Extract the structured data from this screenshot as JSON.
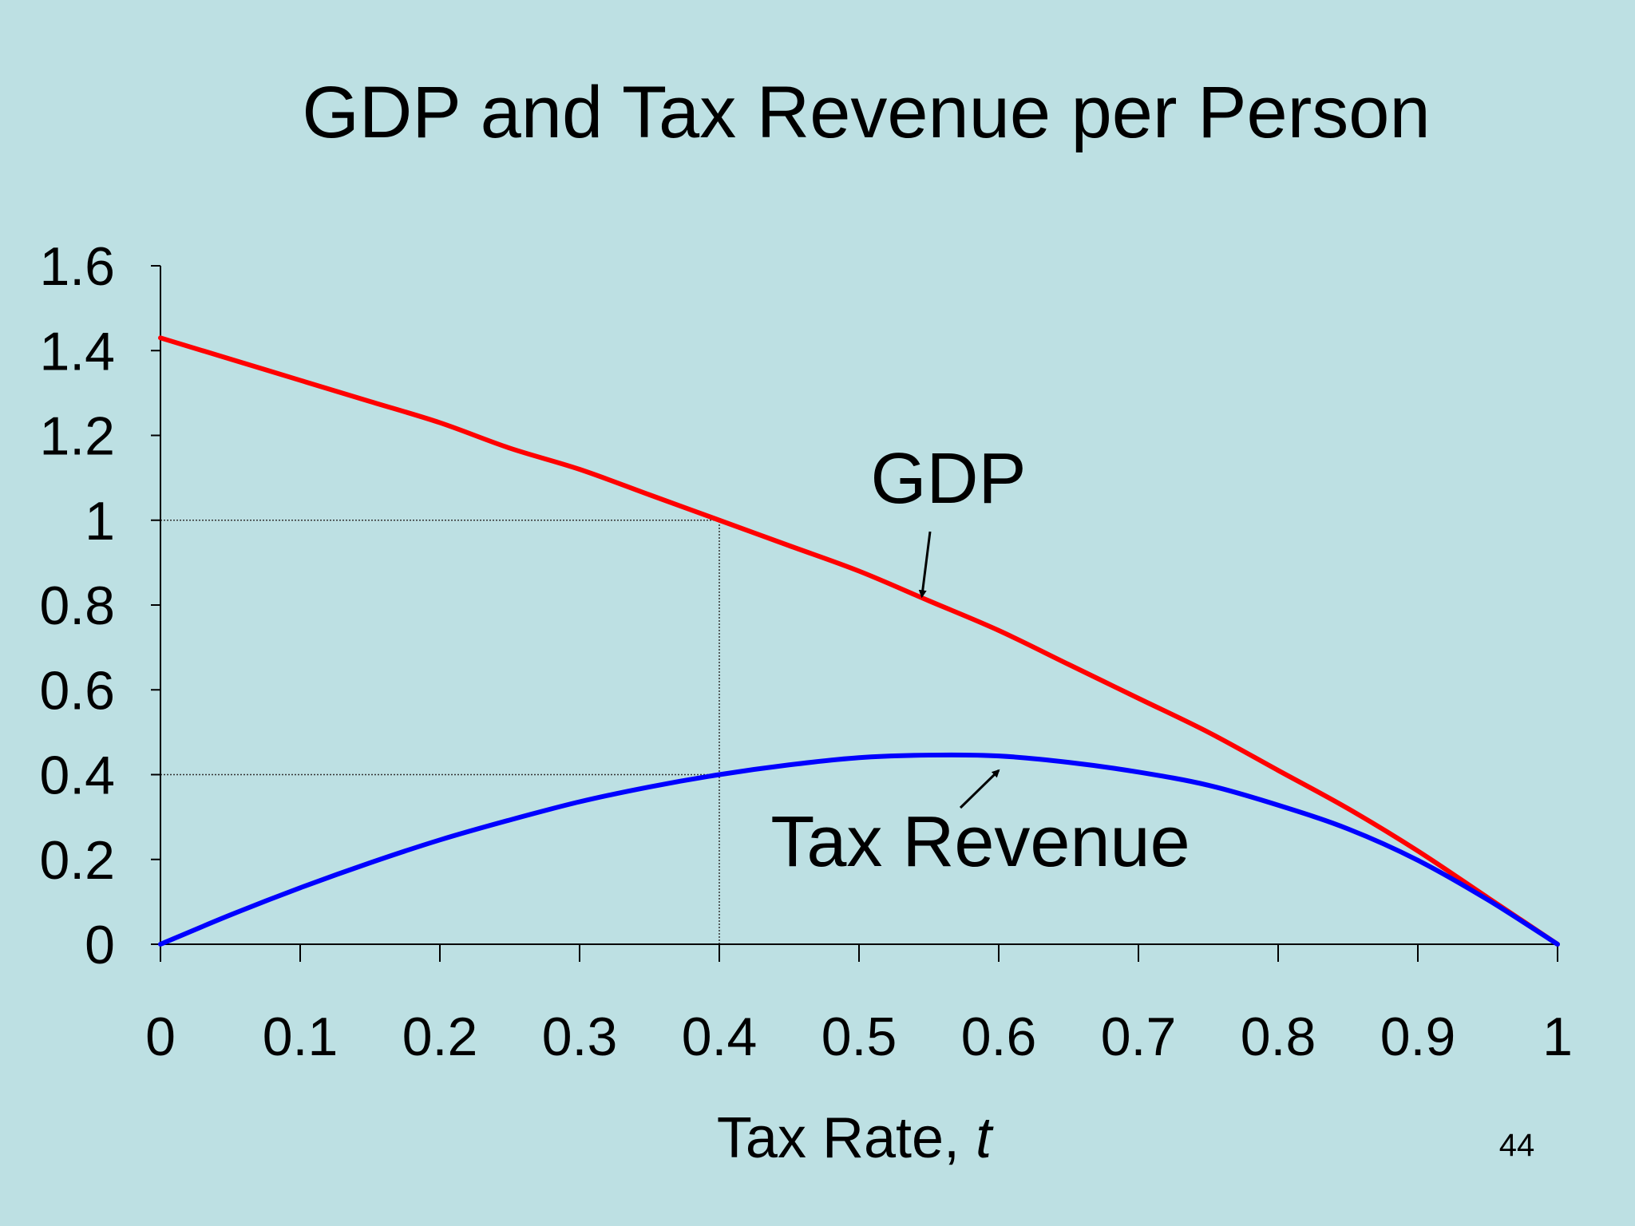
{
  "slide": {
    "page_number": "44",
    "background_color": "#bde0e3"
  },
  "chart_data": {
    "type": "line",
    "title": "GDP and Tax Revenue per Person",
    "xlabel": "Tax Rate, ",
    "xlabel_var": "t",
    "ylabel": "",
    "xlim": [
      0,
      1
    ],
    "ylim": [
      0,
      1.6
    ],
    "x_ticks": [
      0,
      0.1,
      0.2,
      0.3,
      0.4,
      0.5,
      0.6,
      0.7,
      0.8,
      0.9,
      1
    ],
    "x_tick_labels": [
      "0",
      "0.1",
      "0.2",
      "0.3",
      "0.4",
      "0.5",
      "0.6",
      "0.7",
      "0.8",
      "0.9",
      "1"
    ],
    "y_ticks": [
      0,
      0.2,
      0.4,
      0.6,
      0.8,
      1,
      1.2,
      1.4,
      1.6
    ],
    "y_tick_labels": [
      "0",
      "0.2",
      "0.4",
      "0.6",
      "0.8",
      "1",
      "1.2",
      "1.4",
      "1.6"
    ],
    "grid": false,
    "series": [
      {
        "name": "GDP",
        "color": "#ff0000",
        "x": [
          0,
          0.05,
          0.1,
          0.15,
          0.2,
          0.25,
          0.3,
          0.35,
          0.4,
          0.45,
          0.5,
          0.55,
          0.6,
          0.65,
          0.7,
          0.75,
          0.8,
          0.85,
          0.9,
          0.95,
          1
        ],
        "values": [
          1.43,
          1.38,
          1.33,
          1.28,
          1.23,
          1.17,
          1.12,
          1.06,
          1.0,
          0.94,
          0.88,
          0.81,
          0.74,
          0.66,
          0.58,
          0.5,
          0.41,
          0.32,
          0.22,
          0.11,
          0.0
        ]
      },
      {
        "name": "Tax Revenue",
        "color": "#0000ff",
        "x": [
          0,
          0.05,
          0.1,
          0.15,
          0.2,
          0.25,
          0.3,
          0.35,
          0.4,
          0.45,
          0.5,
          0.55,
          0.6,
          0.65,
          0.7,
          0.75,
          0.8,
          0.85,
          0.9,
          0.95,
          1
        ],
        "values": [
          0.0,
          0.069,
          0.133,
          0.192,
          0.246,
          0.293,
          0.336,
          0.371,
          0.4,
          0.423,
          0.44,
          0.446,
          0.444,
          0.429,
          0.406,
          0.375,
          0.328,
          0.272,
          0.198,
          0.105,
          0.0
        ]
      }
    ],
    "reference_lines": [
      {
        "from": [
          0,
          1
        ],
        "to": [
          0.4,
          1
        ]
      },
      {
        "from": [
          0,
          0.4
        ],
        "to": [
          0.4,
          0.4
        ]
      },
      {
        "from": [
          0.4,
          0
        ],
        "to": [
          0.4,
          1
        ]
      }
    ],
    "annotations": [
      {
        "text": "GDP",
        "arrow_to": [
          0.545,
          0.82
        ]
      },
      {
        "text": "Tax Revenue",
        "arrow_to": [
          0.6,
          0.41
        ]
      }
    ]
  }
}
